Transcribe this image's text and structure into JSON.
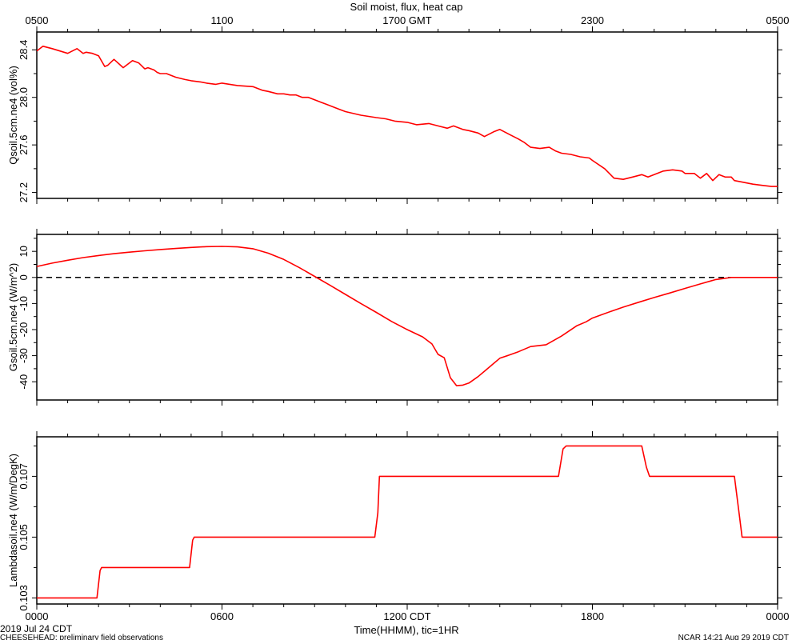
{
  "title": "Soil moist, flux, heat cap",
  "top_axis": {
    "ticks": [
      "0500",
      "1100",
      "1700 GMT",
      "2300",
      "0500"
    ]
  },
  "bottom_axis": {
    "ticks": [
      "0000",
      "0600",
      "1200 CDT",
      "1800",
      "0000"
    ],
    "xlabel": "Time(HHMM), tic=1HR"
  },
  "footer": {
    "date": "2019 Jul 24 CDT",
    "project": "CHEESEHEAD: preliminary field observations",
    "stamp": "NCAR 14:21 Aug 29 2019 CDT"
  },
  "line_color": "#ff0000",
  "chart_data": [
    {
      "type": "line",
      "ylabel": "Qsoil.5cm.ne4 (vol%)",
      "ylim": [
        27.15,
        28.55
      ],
      "yticks": [
        "27.2",
        "27.6",
        "28.0",
        "28.4"
      ],
      "x_hours": [
        0.0,
        0.2,
        0.5,
        1.0,
        1.3,
        1.5,
        1.6,
        1.8,
        2.0,
        2.2,
        2.3,
        2.5,
        2.8,
        2.9,
        3.1,
        3.3,
        3.5,
        3.6,
        3.8,
        3.9,
        4.0,
        4.1,
        4.2,
        4.3,
        4.5,
        4.8,
        5.0,
        5.3,
        5.5,
        5.8,
        6.0,
        6.5,
        7.0,
        7.3,
        7.5,
        7.8,
        8.0,
        8.2,
        8.4,
        8.6,
        8.8,
        9.0,
        9.2,
        9.4,
        9.6,
        9.8,
        10.0,
        10.5,
        11.0,
        11.3,
        11.6,
        12.0,
        12.3,
        12.7,
        13.0,
        13.3,
        13.5,
        13.8,
        14.0,
        14.3,
        14.5,
        14.8,
        15.0,
        15.3,
        15.6,
        15.8,
        16.0,
        16.3,
        16.6,
        16.8,
        17.0,
        17.3,
        17.6,
        17.9,
        18.0,
        18.4,
        18.7,
        19.0,
        19.3,
        19.6,
        19.8,
        20.0,
        20.3,
        20.6,
        20.9,
        21.0,
        21.3,
        21.5,
        21.7,
        21.9,
        22.1,
        22.3,
        22.5,
        22.6,
        22.8,
        23.0,
        23.2,
        23.5,
        23.8,
        24.0
      ],
      "values": [
        28.39,
        28.43,
        28.41,
        28.37,
        28.41,
        28.37,
        28.38,
        28.37,
        28.35,
        28.26,
        28.27,
        28.32,
        28.25,
        28.27,
        28.31,
        28.29,
        28.24,
        28.25,
        28.23,
        28.21,
        28.2,
        28.2,
        28.2,
        28.19,
        28.17,
        28.15,
        28.14,
        28.13,
        28.12,
        28.11,
        28.12,
        28.1,
        28.09,
        28.06,
        28.05,
        28.03,
        28.03,
        28.02,
        28.02,
        28.0,
        28.0,
        27.98,
        27.96,
        27.94,
        27.92,
        27.9,
        27.88,
        27.85,
        27.83,
        27.82,
        27.8,
        27.79,
        27.77,
        27.78,
        27.76,
        27.74,
        27.76,
        27.73,
        27.72,
        27.7,
        27.67,
        27.71,
        27.73,
        27.69,
        27.65,
        27.62,
        27.58,
        27.57,
        27.58,
        27.55,
        27.53,
        27.52,
        27.5,
        27.49,
        27.47,
        27.4,
        27.32,
        27.31,
        27.33,
        27.35,
        27.33,
        27.35,
        27.38,
        27.39,
        27.38,
        27.36,
        27.36,
        27.32,
        27.36,
        27.3,
        27.35,
        27.33,
        27.33,
        27.3,
        27.29,
        27.28,
        27.27,
        27.26,
        27.25,
        27.25
      ]
    },
    {
      "type": "line",
      "ylabel": "Gsoil.5cm.ne4 (W/m^2)",
      "ylim": [
        -47,
        16.5
      ],
      "yticks": [
        "-40",
        "-30",
        "-20",
        "-10",
        "0",
        "10"
      ],
      "reference_line": {
        "y": 0,
        "style": "dashed"
      },
      "x_hours": [
        0.0,
        0.5,
        1.0,
        1.5,
        2.0,
        2.5,
        3.0,
        3.5,
        4.0,
        4.5,
        5.0,
        5.5,
        6.0,
        6.5,
        7.0,
        7.5,
        8.0,
        8.5,
        9.0,
        9.5,
        10.0,
        10.5,
        11.0,
        11.5,
        12.0,
        12.5,
        12.8,
        13.0,
        13.2,
        13.4,
        13.6,
        13.8,
        14.0,
        14.3,
        14.5,
        14.8,
        15.0,
        15.3,
        15.6,
        16.0,
        16.5,
        17.0,
        17.5,
        17.8,
        18.0,
        18.3,
        18.6,
        19.0,
        19.5,
        20.0,
        20.5,
        21.0,
        21.5,
        22.0,
        22.5,
        23.0,
        23.5,
        24.0
      ],
      "values": [
        4.2,
        5.5,
        6.6,
        7.6,
        8.4,
        9.1,
        9.7,
        10.2,
        10.7,
        11.1,
        11.5,
        11.8,
        11.9,
        11.7,
        11.0,
        9.3,
        6.9,
        3.8,
        0.4,
        -3.0,
        -6.5,
        -10.0,
        -13.4,
        -16.9,
        -20.0,
        -22.8,
        -25.5,
        -29.5,
        -30.8,
        -38.5,
        -41.5,
        -41.3,
        -40.5,
        -38.0,
        -36.0,
        -33.0,
        -31.0,
        -29.8,
        -28.5,
        -26.5,
        -25.8,
        -22.5,
        -18.5,
        -17.0,
        -15.6,
        -14.3,
        -13.0,
        -11.4,
        -9.5,
        -7.7,
        -6.0,
        -4.2,
        -2.5,
        -0.8,
        0.0,
        0.0,
        0.0,
        0.0
      ]
    },
    {
      "type": "line",
      "ylabel": "Lambdasoil.ne4 (W/m/DegK)",
      "ylim": [
        0.1028,
        0.1083
      ],
      "yticks": [
        "0.103",
        "0.105",
        "0.107"
      ],
      "x_hours": [
        0.0,
        1.95,
        2.05,
        2.1,
        4.95,
        5.05,
        5.1,
        10.95,
        11.05,
        11.1,
        16.9,
        17.05,
        17.15,
        19.6,
        19.75,
        19.85,
        22.6,
        22.75,
        22.85,
        24.0
      ],
      "values": [
        0.103,
        0.103,
        0.1039,
        0.104,
        0.104,
        0.1049,
        0.105,
        0.105,
        0.1058,
        0.107,
        0.107,
        0.1079,
        0.108,
        0.108,
        0.1073,
        0.107,
        0.107,
        0.1058,
        0.105,
        0.105
      ]
    }
  ]
}
